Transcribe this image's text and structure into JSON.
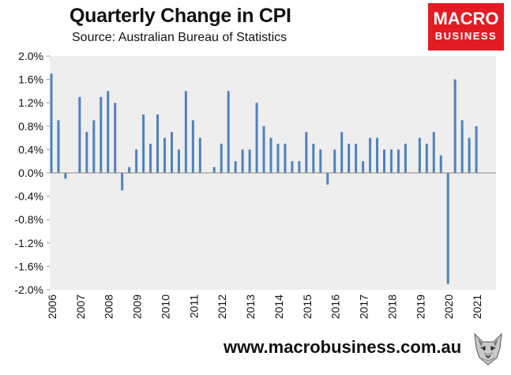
{
  "header": {
    "title": "Quarterly Change in CPI",
    "subtitle": "Source: Australian Bureau of Statistics"
  },
  "logo": {
    "line1": "MACRO",
    "line2": "BUSINESS",
    "color": "#e31b23"
  },
  "footer": {
    "url": "www.macrobusiness.com.au"
  },
  "chart_data": {
    "type": "bar",
    "title": "Quarterly Change in CPI",
    "subtitle": "Source: Australian Bureau of Statistics",
    "xlabel": "",
    "ylabel": "",
    "ylim": [
      -2.0,
      2.0
    ],
    "y_ticks": [
      2.0,
      1.6,
      1.2,
      0.8,
      0.4,
      0.0,
      -0.4,
      -0.8,
      -1.2,
      -1.6,
      -2.0
    ],
    "y_tick_labels": [
      "2.0%",
      "1.6%",
      "1.2%",
      "0.8%",
      "0.4%",
      "0.0%",
      "-0.4%",
      "-0.8%",
      "-1.2%",
      "-1.6%",
      "-2.0%"
    ],
    "x_tick_labels": [
      "2006",
      "2007",
      "2008",
      "2009",
      "2010",
      "2011",
      "2012",
      "2013",
      "2014",
      "2015",
      "2016",
      "2017",
      "2018",
      "2019",
      "2020",
      "2021"
    ],
    "quarters_per_year": 4,
    "first_year_start_quarter": 1,
    "bar_color": "#4f81bd",
    "plot_background": "#eeeeee",
    "grid": false,
    "legend": "none",
    "values": [
      1.7,
      0.9,
      -0.1,
      0.0,
      1.3,
      0.7,
      0.9,
      1.3,
      1.4,
      1.2,
      -0.3,
      0.1,
      0.4,
      1.0,
      0.5,
      1.0,
      0.6,
      0.7,
      0.4,
      1.4,
      0.9,
      0.6,
      0.0,
      0.1,
      0.5,
      1.4,
      0.2,
      0.4,
      0.4,
      1.2,
      0.8,
      0.6,
      0.5,
      0.5,
      0.2,
      0.2,
      0.7,
      0.5,
      0.4,
      -0.2,
      0.4,
      0.7,
      0.5,
      0.5,
      0.2,
      0.6,
      0.6,
      0.4,
      0.4,
      0.4,
      0.5,
      0.0,
      0.6,
      0.5,
      0.7,
      0.3,
      -1.9,
      1.6,
      0.9,
      0.6,
      0.8
    ]
  }
}
